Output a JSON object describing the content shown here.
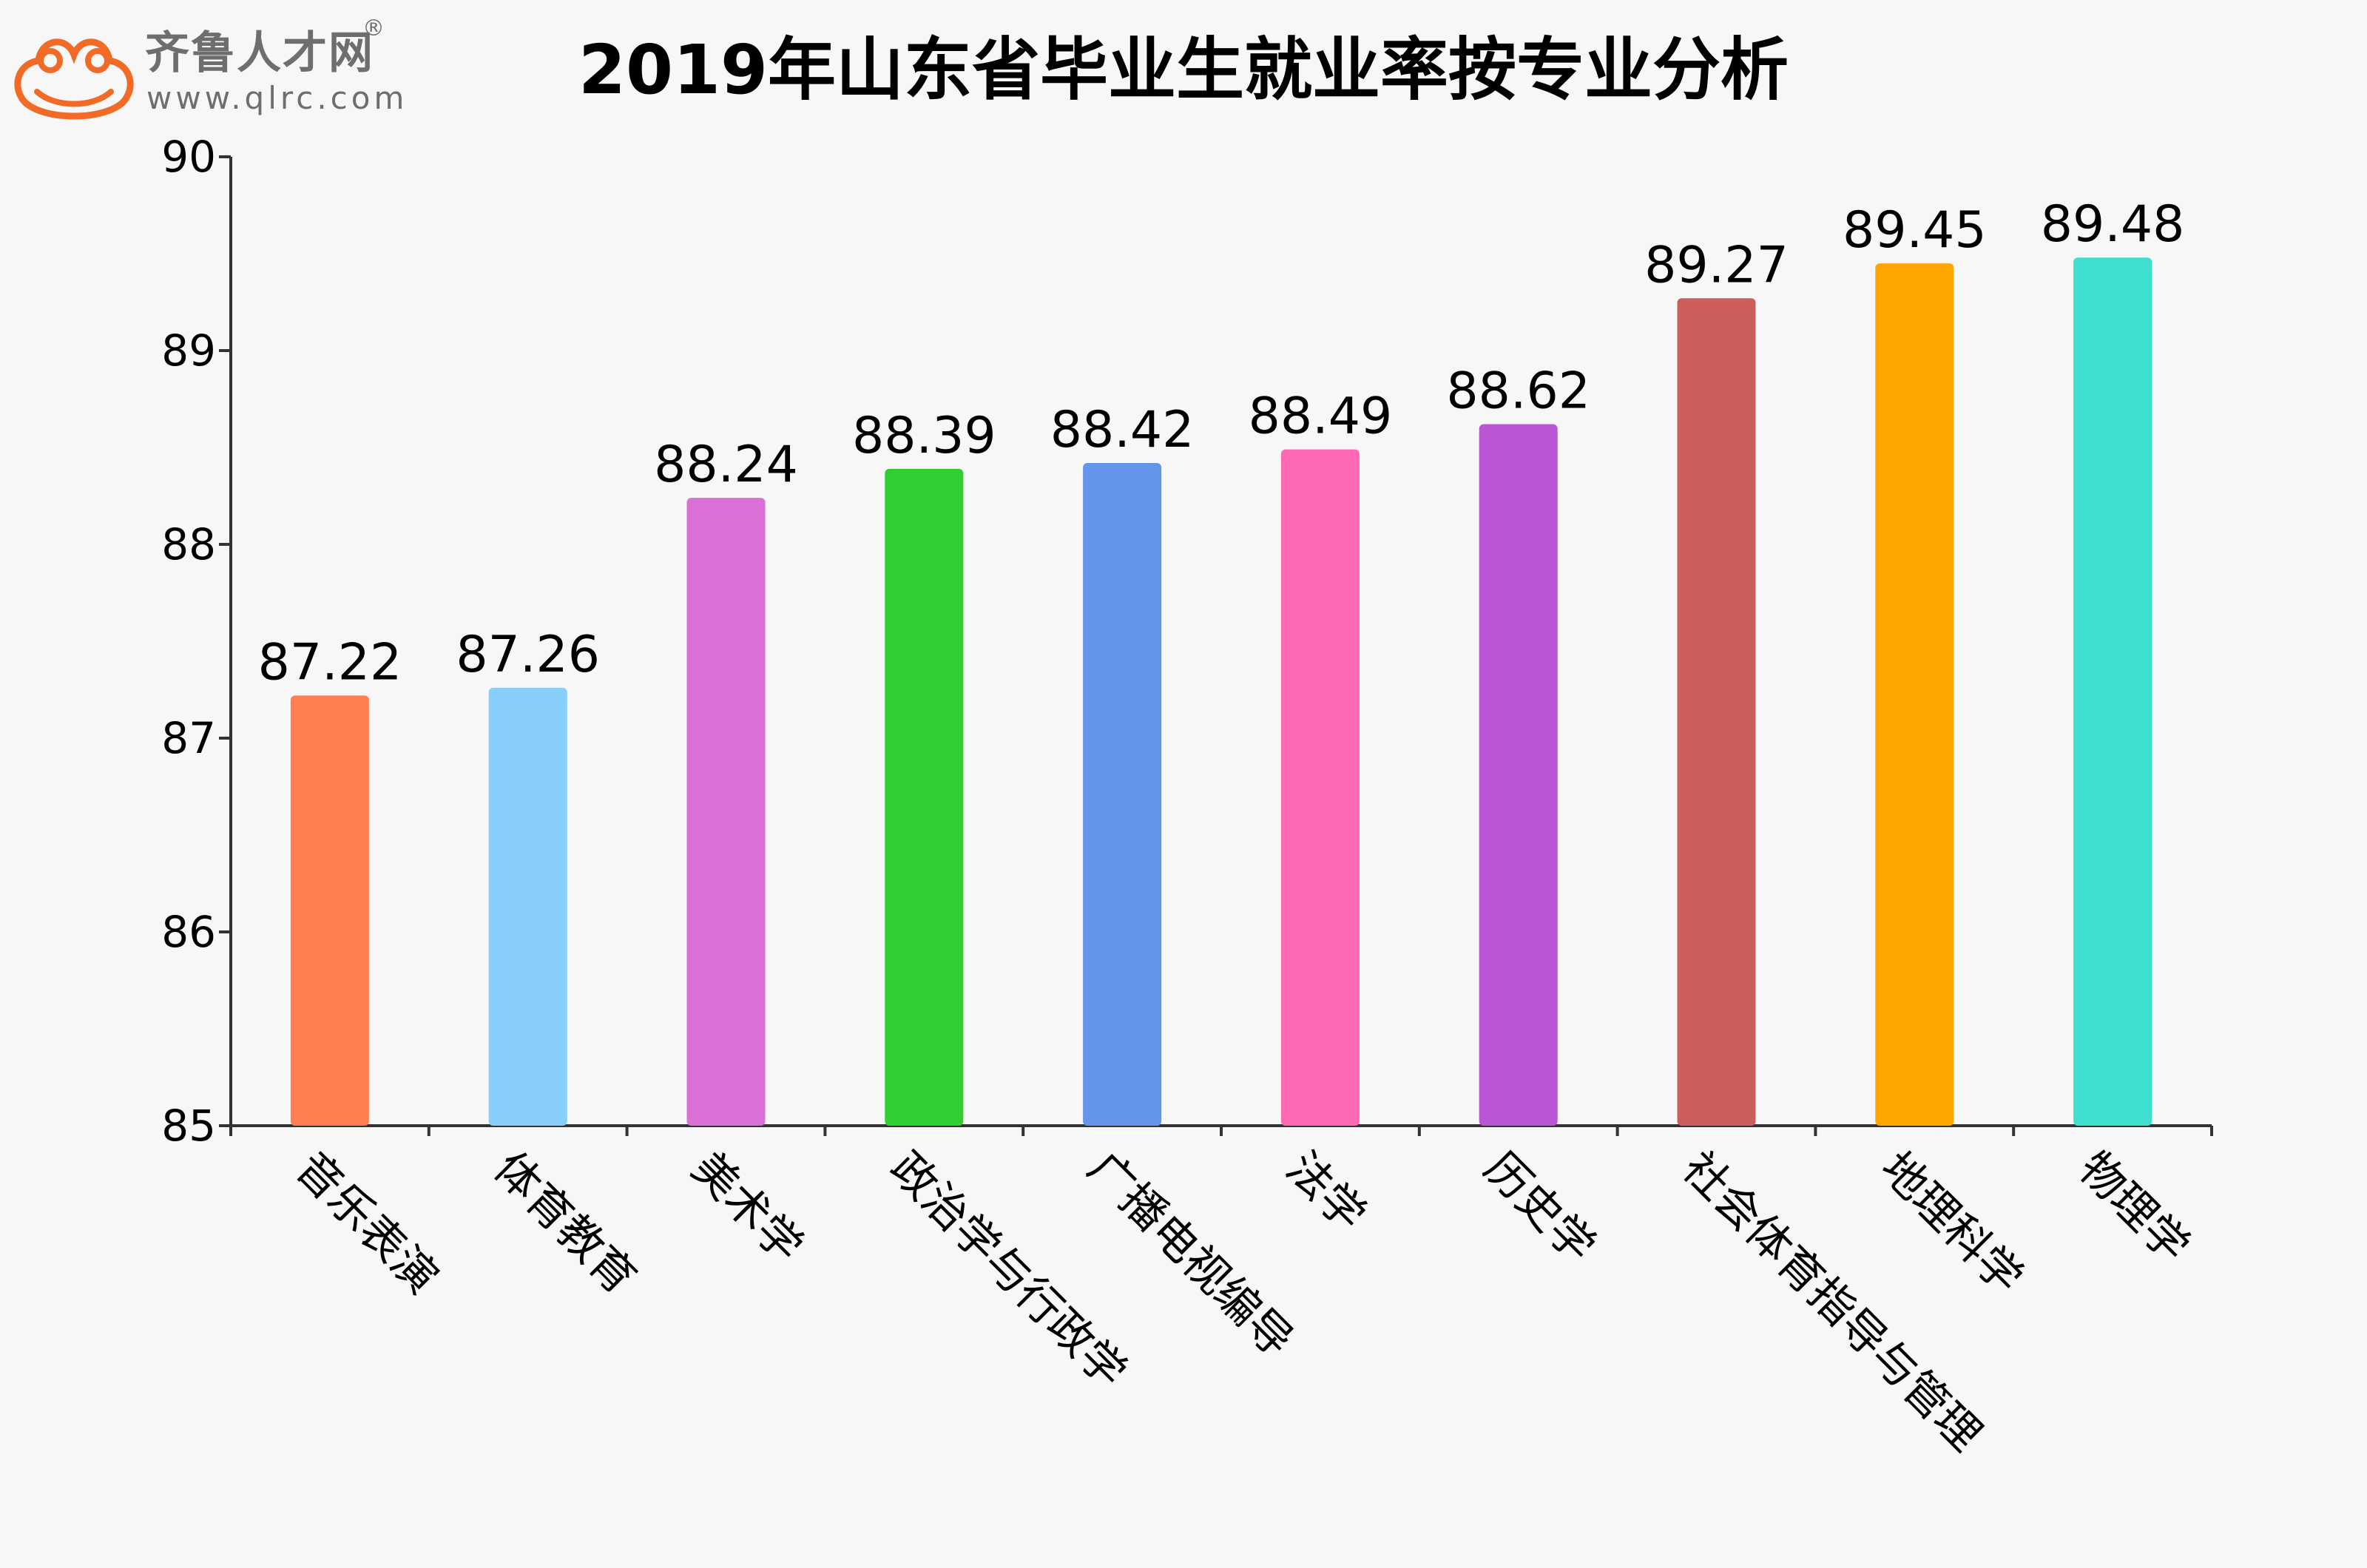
{
  "logo": {
    "brand": "齐鲁人才网",
    "registered": "®",
    "url": "www.qlrc.com",
    "icon": "frog-icon",
    "color": "#f26b26"
  },
  "chart_data": {
    "type": "bar",
    "title": "2019年山东省毕业生就业率按专业分析",
    "xlabel": "",
    "ylabel": "",
    "ylim": [
      85,
      90
    ],
    "yticks": [
      "85",
      "86",
      "87",
      "88",
      "89",
      "90"
    ],
    "grid": false,
    "categories": [
      "音乐表演",
      "体育教育",
      "美术学",
      "政治学与行政学",
      "广播电视编导",
      "法学",
      "历史学",
      "社会体育指导与管理",
      "地理科学",
      "物理学"
    ],
    "values": [
      87.22,
      87.26,
      88.24,
      88.39,
      88.42,
      88.49,
      88.62,
      89.27,
      89.45,
      89.48
    ],
    "value_labels": [
      "87.22",
      "87.26",
      "88.24",
      "88.39",
      "88.42",
      "88.49",
      "88.62",
      "89.27",
      "89.45",
      "89.48"
    ],
    "colors": [
      "#ff7f50",
      "#87cefa",
      "#da70d6",
      "#32cd32",
      "#6495ed",
      "#ff69b4",
      "#ba55d3",
      "#cd5c5c",
      "#ffa500",
      "#40e0d0"
    ]
  }
}
